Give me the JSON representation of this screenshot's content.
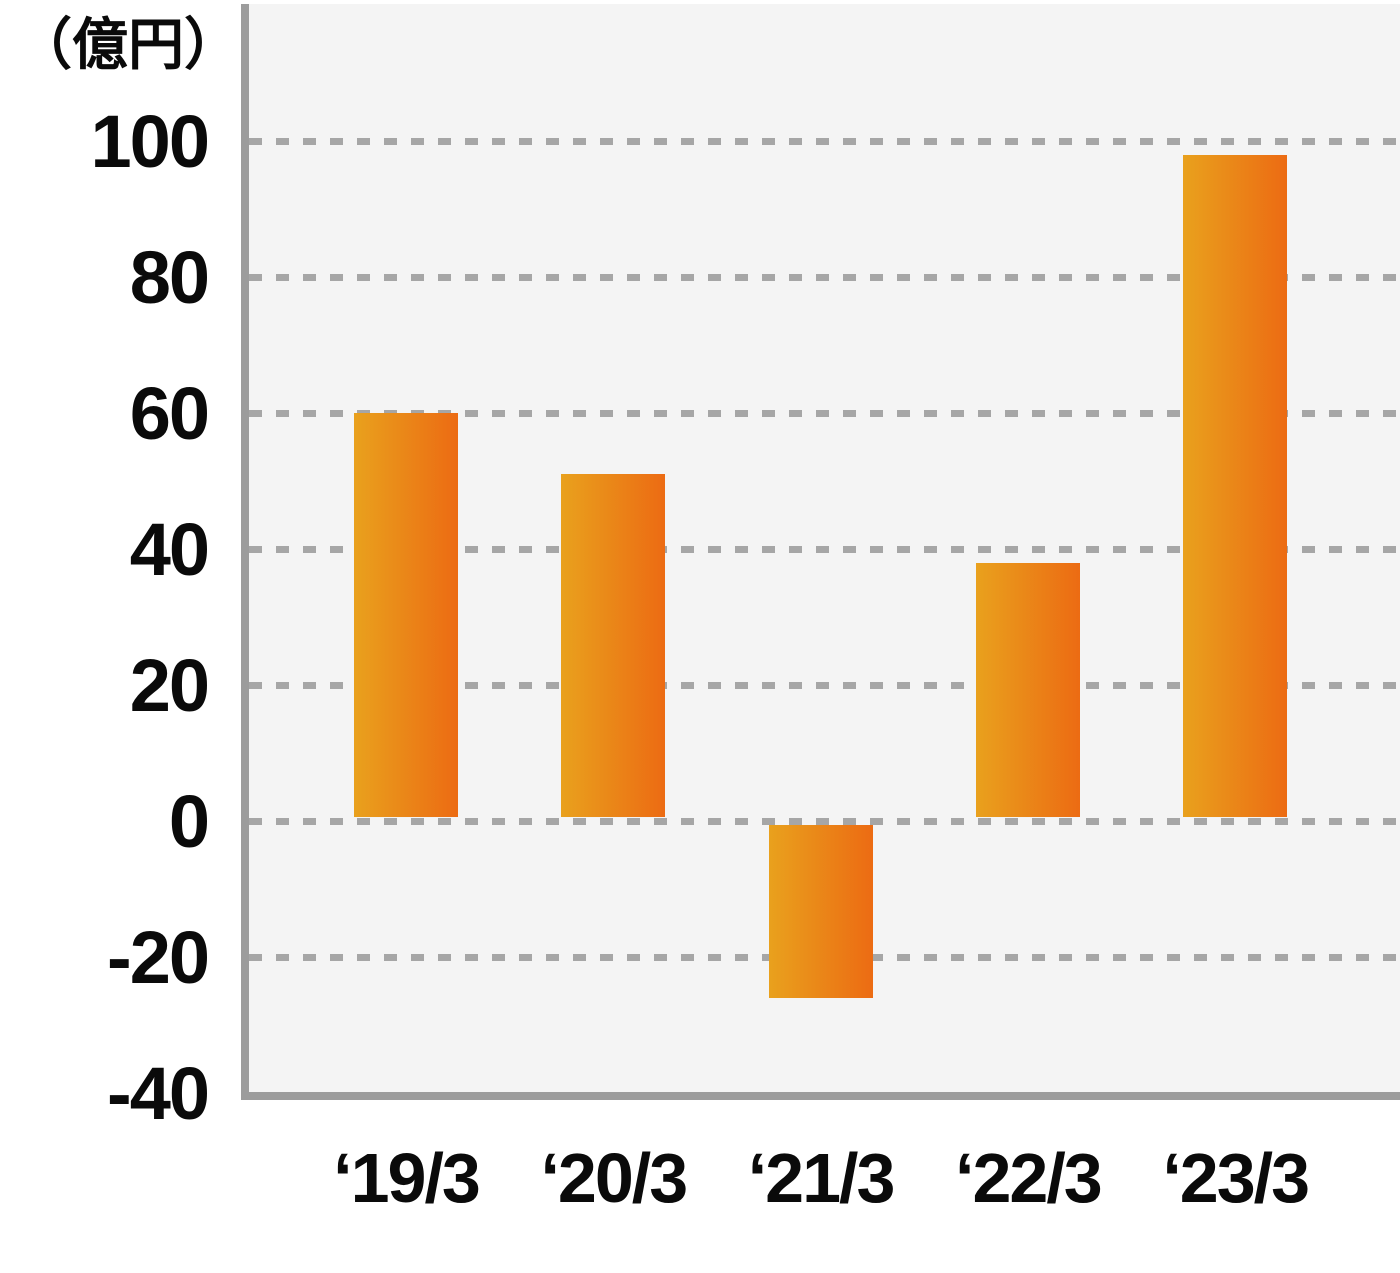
{
  "chart_data": {
    "type": "bar",
    "title": "",
    "unit_label": "（億円）",
    "xlabel": "",
    "ylabel": "億円",
    "categories": [
      "‘19/3",
      "‘20/3",
      "‘21/3",
      "‘22/3",
      "‘23/3"
    ],
    "values": [
      60,
      51,
      -26,
      38,
      98
    ],
    "y_ticks": [
      100,
      80,
      60,
      40,
      20,
      0,
      -20,
      -40
    ],
    "ylim": [
      -40,
      120
    ],
    "grid": "dashed-horizontal",
    "legend": "none"
  },
  "colors": {
    "bar_gradient_left": "#e9a11d",
    "bar_gradient_right": "#ec6b13",
    "plot_background": "#f4f4f4",
    "gridline": "#a6a6a6",
    "axis": "#9c9c9c",
    "text": "#0a0a0a",
    "page_background": "#ffffff"
  }
}
